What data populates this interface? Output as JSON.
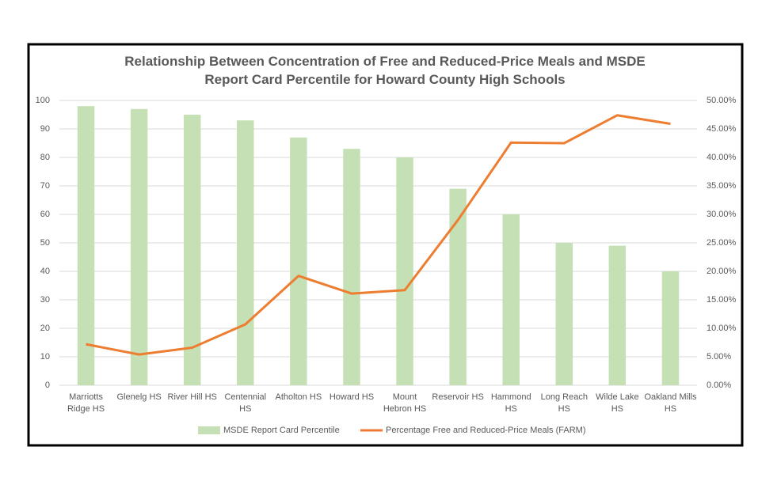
{
  "chart_data": {
    "type": "bar-line",
    "title": "Relationship Between Concentration of Free and Reduced-Price Meals and MSDE Report Card Percentile for Howard County High Schools",
    "categories": [
      "Marriotts Ridge HS",
      "Glenelg HS",
      "River Hill HS",
      "Centennial HS",
      "Atholton HS",
      "Howard HS",
      "Mount Hebron HS",
      "Reservoir HS",
      "Hammond HS",
      "Long Reach HS",
      "Wilde Lake HS",
      "Oakland Mills HS"
    ],
    "series": [
      {
        "name": "MSDE Report Card Percentile",
        "type": "bar",
        "color": "#c5e0b4",
        "values": [
          98,
          97,
          95,
          93,
          87,
          83,
          80,
          69,
          60,
          50,
          49,
          40
        ]
      },
      {
        "name": "Percentage Free and Reduced-Price Meals (FARM)",
        "type": "line",
        "axis": "y2",
        "color": "#ed7d31",
        "values": [
          7.2,
          5.4,
          6.6,
          10.7,
          19.2,
          16.1,
          16.7,
          29,
          42.6,
          42.5,
          47.4,
          45.9
        ]
      }
    ],
    "ylim": [
      0,
      100
    ],
    "yticks": [
      0,
      10,
      20,
      30,
      40,
      50,
      60,
      70,
      80,
      90,
      100
    ],
    "y2lim": [
      0,
      50
    ],
    "y2ticks": [
      {
        "value": 0,
        "label": "0.00%"
      },
      {
        "value": 5,
        "label": "5.00%"
      },
      {
        "value": 10,
        "label": "10.00%"
      },
      {
        "value": 15,
        "label": "15.00%"
      },
      {
        "value": 20,
        "label": "20.00%"
      },
      {
        "value": 25,
        "label": "25.00%"
      },
      {
        "value": 30,
        "label": "30.00%"
      },
      {
        "value": 35,
        "label": "35.00%"
      },
      {
        "value": 40,
        "label": "40.00%"
      },
      {
        "value": 45,
        "label": "45.00%"
      },
      {
        "value": 50,
        "label": "50.00%"
      }
    ],
    "grid": true,
    "legend": "bottom"
  }
}
